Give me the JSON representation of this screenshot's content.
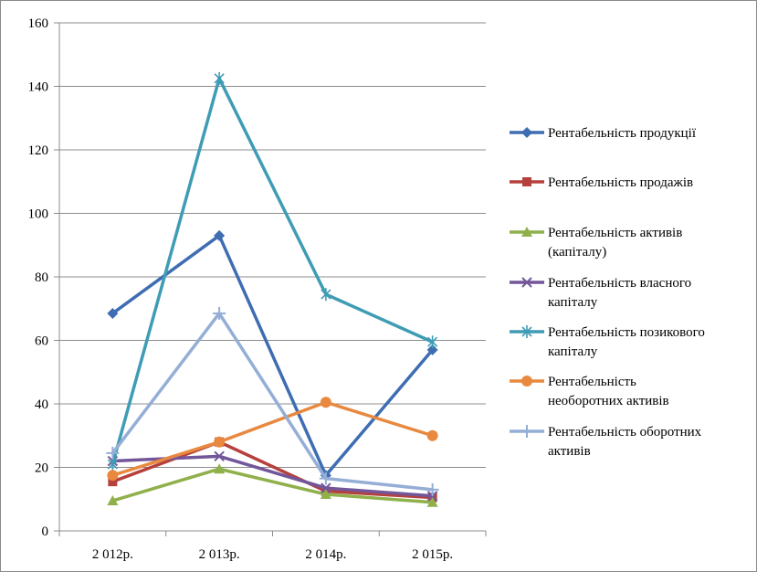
{
  "chart_data": {
    "type": "line",
    "title": "",
    "xlabel": "",
    "ylabel": "",
    "categories": [
      "2 012р.",
      "2 013р.",
      "2 014р.",
      "2 015р."
    ],
    "ylim": [
      0,
      160
    ],
    "yticks": [
      0,
      20,
      40,
      60,
      80,
      100,
      120,
      140,
      160
    ],
    "grid": "horizontal",
    "legend_position": "right",
    "series": [
      {
        "name": "Рентабельність продукції",
        "values": [
          68.5,
          93,
          17.5,
          57
        ],
        "color": "#3e6db2",
        "marker": "diamond"
      },
      {
        "name": "Рентабельність продажів",
        "values": [
          15.5,
          28,
          12.5,
          10.5
        ],
        "color": "#b5403c",
        "marker": "square"
      },
      {
        "name": "Рентабельність активів (капіталу)",
        "values": [
          9.5,
          19.5,
          11.5,
          9
        ],
        "color": "#8fb04b",
        "marker": "triangle"
      },
      {
        "name": "Рентабельність власного капіталу",
        "values": [
          22,
          23.5,
          13.5,
          11
        ],
        "color": "#73569a",
        "marker": "x"
      },
      {
        "name": "Рентабельність позикового капіталу",
        "values": [
          21,
          142.5,
          74.5,
          59.5
        ],
        "color": "#3f9cb5",
        "marker": "star"
      },
      {
        "name": "Рентабельність необоротних активів",
        "values": [
          17.5,
          28,
          40.5,
          30
        ],
        "color": "#e8893f",
        "marker": "circle"
      },
      {
        "name": "Рентабельність оборотних активів",
        "values": [
          24.5,
          68.5,
          16.5,
          13
        ],
        "color": "#94aed6",
        "marker": "plus"
      }
    ],
    "legend_lines": [
      [
        "Рентабельність продукції"
      ],
      [
        "Рентабельність продажів"
      ],
      [
        "Рентабельність активів",
        "(капіталу)"
      ],
      [
        "Рентабельність власного",
        "капіталу"
      ],
      [
        "Рентабельність позикового",
        "капіталу"
      ],
      [
        "Рентабельність",
        "необоротних  активів"
      ],
      [
        "Рентабельність оборотних",
        "активів"
      ]
    ]
  }
}
